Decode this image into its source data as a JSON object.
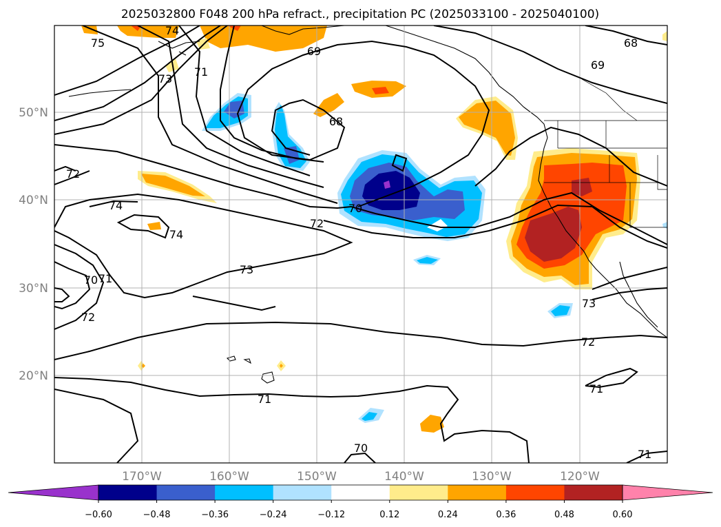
{
  "title": "2025032800 F048 200 hPa refract., precipitation PC (2025033100 - 2025040100)",
  "map": {
    "lat_ticks": [
      "50°N",
      "40°N",
      "30°N",
      "20°N"
    ],
    "lon_ticks": [
      "170°W",
      "160°W",
      "150°W",
      "140°W",
      "130°W",
      "120°W"
    ],
    "grid": true,
    "contour_labels": [
      "75",
      "74",
      "73",
      "71",
      "69",
      "68",
      "69",
      "68",
      "72",
      "74",
      "74",
      "70",
      "72",
      "73",
      "70",
      "71",
      "72",
      "73",
      "72",
      "71",
      "71",
      "70",
      "71"
    ]
  },
  "colorbar": {
    "ticks": [
      "-0.60",
      "-0.48",
      "-0.36",
      "-0.24",
      "-0.12",
      "0.12",
      "0.24",
      "0.36",
      "0.48",
      "0.60"
    ],
    "colors": [
      "#9932cc",
      "#00008b",
      "#3a5fcd",
      "#00bfff",
      "#b0e2ff",
      "#ffffff",
      "#ffec8b",
      "#ffa500",
      "#ff4500",
      "#b22222",
      "#ff82ab"
    ],
    "extend": "both"
  },
  "colors": {
    "positive_light": "#ffec8b",
    "positive_mid": "#ffa500",
    "positive_strong": "#ff4500",
    "positive_max": "#b22222",
    "negative_light": "#b0e2ff",
    "negative_mid": "#00bfff",
    "negative_strong": "#3a5fcd",
    "negative_max": "#00008b",
    "negative_extreme": "#9932cc"
  }
}
